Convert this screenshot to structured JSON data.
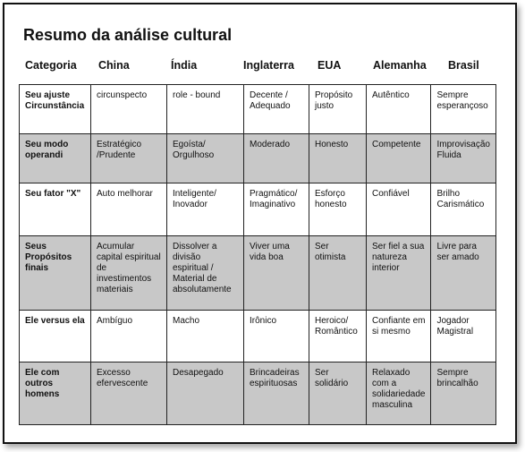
{
  "title": "Resumo da análise cultural",
  "headers": [
    "Categoria",
    "China",
    "Índia",
    "Inglaterra",
    "EUA",
    "Alemanha",
    "Brasil"
  ],
  "rows": [
    {
      "label": "Seu ajuste Circunstância",
      "cells": [
        "circunspecto",
        "role - bound",
        "Decente / Adequado",
        "Propósito justo",
        "Autêntico",
        "Sempre esperançoso"
      ]
    },
    {
      "label": "Seu modo operandi",
      "cells": [
        "Estratégico /Prudente",
        "Egoísta/ Orgulhoso",
        "Moderado",
        "Honesto",
        "Competente",
        "Improvisação Fluida"
      ]
    },
    {
      "label": "Seu fator \"X\"",
      "cells": [
        "Auto melhorar",
        "Inteligente/ Inovador",
        "Pragmático/ Imaginativo",
        "Esforço honesto",
        "Confiável",
        "Brilho Carismático"
      ]
    },
    {
      "label": "Seus Propósitos finais",
      "cells": [
        "Acumular capital espiritual de investimentos materiais",
        "Dissolver a divisão espiritual / Material de absolutamente",
        "Viver uma vida boa",
        "Ser otimista",
        "Ser fiel a sua natureza interior",
        "Livre para ser amado"
      ]
    },
    {
      "label": "Ele versus ela",
      "cells": [
        "Ambíguo",
        "Macho",
        "Irônico",
        "Heroico/ Romântico",
        "Confiante em si mesmo",
        "Jogador Magistral"
      ]
    },
    {
      "label": "Ele com outros homens",
      "cells": [
        "Excesso efervescente",
        "Desapegado",
        "Brincadeiras espirituosas",
        "Ser solidário",
        "Relaxado com a solidariedade masculina",
        "Sempre brincalhão"
      ]
    }
  ]
}
